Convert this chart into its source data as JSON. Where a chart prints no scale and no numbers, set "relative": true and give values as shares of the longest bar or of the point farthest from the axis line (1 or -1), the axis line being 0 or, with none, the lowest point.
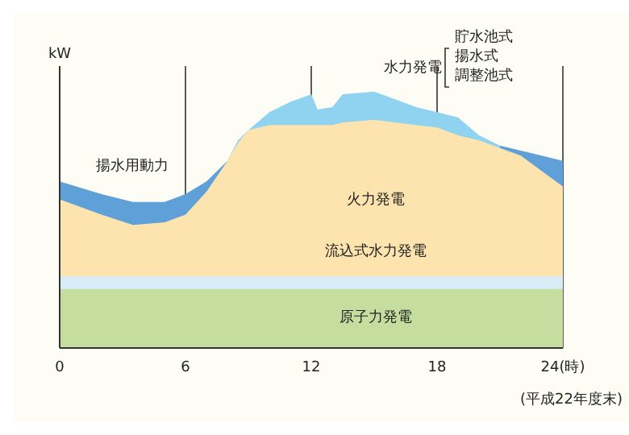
{
  "chart_data": {
    "type": "area",
    "relative": true,
    "grid": "x",
    "x": [
      0,
      2,
      3.5,
      5,
      6,
      7,
      8,
      8.5,
      9,
      10,
      11,
      12,
      12.3,
      13,
      13.5,
      15,
      16,
      17,
      18,
      19,
      20,
      21,
      22,
      23,
      24
    ],
    "xlim": [
      0,
      24
    ],
    "xticks": [
      0,
      6,
      12,
      18,
      {
        "value": 24,
        "label": "24(時)"
      }
    ],
    "series": [
      {
        "color": "#5fa0d8",
        "values": [
          0.65,
          0.6,
          0.57,
          0.57,
          0.6,
          0.65,
          0.73,
          null,
          null,
          null,
          null,
          null,
          null,
          null,
          null,
          null,
          null,
          null,
          null,
          null,
          null,
          0.79,
          0.77,
          0.75,
          0.73
        ]
      },
      {
        "color": "#8fd3f0",
        "values": [
          null,
          null,
          null,
          null,
          null,
          null,
          0.73,
          0.81,
          0.85,
          0.92,
          0.96,
          0.99,
          0.93,
          0.94,
          0.99,
          1.0,
          0.97,
          0.94,
          0.92,
          0.9,
          0.83,
          0.79,
          null,
          null,
          null
        ]
      },
      {
        "color": "#fde3ad",
        "values": [
          0.58,
          0.52,
          0.48,
          0.49,
          0.52,
          0.61,
          0.73,
          0.8,
          0.85,
          0.87,
          0.87,
          0.87,
          0.87,
          0.87,
          0.88,
          0.89,
          0.88,
          0.87,
          0.86,
          0.83,
          0.81,
          0.78,
          0.75,
          0.69,
          0.63
        ]
      },
      {
        "color": "#d8ecf8",
        "values": [
          0.28,
          0.28,
          0.28,
          0.28,
          0.28,
          0.28,
          0.28,
          0.28,
          0.28,
          0.28,
          0.28,
          0.28,
          0.28,
          0.28,
          0.28,
          0.28,
          0.28,
          0.28,
          0.28,
          0.28,
          0.28,
          0.28,
          0.28,
          0.28,
          0.28
        ]
      },
      {
        "color": "#c5dea0",
        "values": [
          0.23,
          0.23,
          0.23,
          0.23,
          0.23,
          0.23,
          0.23,
          0.23,
          0.23,
          0.23,
          0.23,
          0.23,
          0.23,
          0.23,
          0.23,
          0.23,
          0.23,
          0.23,
          0.23,
          0.23,
          0.23,
          0.23,
          0.23,
          0.23,
          0.23
        ]
      }
    ],
    "annotations": [
      "kW",
      "揚水用動力",
      "火力発電",
      "流込式水力発電",
      "原子力発電",
      "水力発電",
      "貯水池式",
      "揚水式",
      "調整池式",
      "(平成22年度末)"
    ]
  }
}
